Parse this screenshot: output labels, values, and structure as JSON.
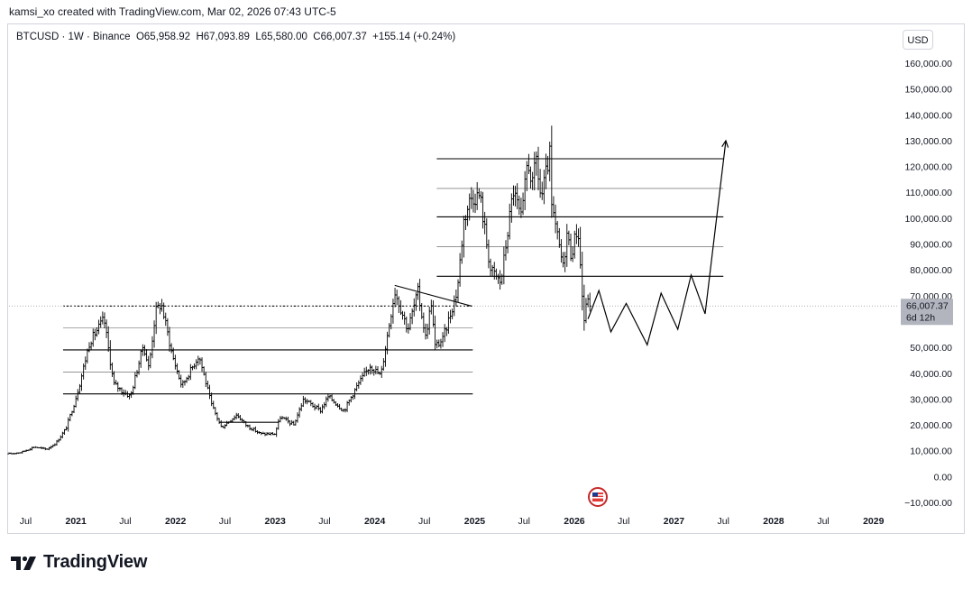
{
  "credit": "kamsi_xo created with TradingView.com, Mar 02, 2026 07:43 UTC-5",
  "legend": {
    "symbol": "BTCUSD",
    "sep": " · ",
    "interval": "1W",
    "exchange": "Binance",
    "open": "O65,958.92",
    "high": "H67,093.89",
    "low": "L65,580.00",
    "close": "C66,007.37",
    "change": "+155.14 (+0.24%)"
  },
  "currency": "USD",
  "price_label": {
    "value": "66,007.37",
    "countdown": "6d 12h"
  },
  "brand": "TradingView",
  "colors": {
    "text": "#131722",
    "grid_border": "#d1d4dc",
    "price_tag": "#b2b5be",
    "candle": "#000000"
  },
  "chart_data": {
    "type": "line",
    "symbol": "BTCUSD",
    "interval": "1W",
    "ylim": [
      -10000,
      160000
    ],
    "y_ticks": [
      160000,
      150000,
      140000,
      130000,
      120000,
      110000,
      100000,
      90000,
      80000,
      70000,
      60000,
      50000,
      40000,
      30000,
      20000,
      10000,
      0,
      -10000
    ],
    "y_tick_labels": [
      "160,000.00",
      "150,000.00",
      "140,000.00",
      "130,000.00",
      "120,000.00",
      "110,000.00",
      "100,000.00",
      "90,000.00",
      "80,000.00",
      "70,000.00",
      "",
      "50,000.00",
      "40,000.00",
      "30,000.00",
      "20,000.00",
      "10,000.00",
      "0.00",
      "−10,000.00"
    ],
    "x_range": [
      "2020-05-01",
      "2029-04-01"
    ],
    "x_ticks": [
      {
        "date": "2020-07-01",
        "label": "Jul",
        "bold": false
      },
      {
        "date": "2021-01-01",
        "label": "2021",
        "bold": true
      },
      {
        "date": "2021-07-01",
        "label": "Jul",
        "bold": false
      },
      {
        "date": "2022-01-01",
        "label": "2022",
        "bold": true
      },
      {
        "date": "2022-07-01",
        "label": "Jul",
        "bold": false
      },
      {
        "date": "2023-01-01",
        "label": "2023",
        "bold": true
      },
      {
        "date": "2023-07-01",
        "label": "Jul",
        "bold": false
      },
      {
        "date": "2024-01-01",
        "label": "2024",
        "bold": true
      },
      {
        "date": "2024-07-01",
        "label": "Jul",
        "bold": false
      },
      {
        "date": "2025-01-01",
        "label": "2025",
        "bold": true
      },
      {
        "date": "2025-07-01",
        "label": "Jul",
        "bold": false
      },
      {
        "date": "2026-01-01",
        "label": "2026",
        "bold": true
      },
      {
        "date": "2026-07-01",
        "label": "Jul",
        "bold": false
      },
      {
        "date": "2027-01-01",
        "label": "2027",
        "bold": true
      },
      {
        "date": "2027-07-01",
        "label": "Jul",
        "bold": false
      },
      {
        "date": "2028-01-01",
        "label": "2028",
        "bold": true
      },
      {
        "date": "2028-07-01",
        "label": "Jul",
        "bold": false
      },
      {
        "date": "2029-01-01",
        "label": "2029",
        "bold": true
      }
    ],
    "price_path": [
      [
        "2020-05-01",
        8800
      ],
      [
        "2020-06-15",
        9400
      ],
      [
        "2020-08-01",
        11500
      ],
      [
        "2020-09-15",
        10500
      ],
      [
        "2020-10-20",
        13000
      ],
      [
        "2020-11-25",
        18500
      ],
      [
        "2020-12-25",
        28000
      ],
      [
        "2021-01-15",
        36000
      ],
      [
        "2021-02-20",
        52000
      ],
      [
        "2021-04-14",
        61000
      ],
      [
        "2021-05-19",
        36000
      ],
      [
        "2021-06-20",
        33000
      ],
      [
        "2021-07-20",
        31000
      ],
      [
        "2021-09-05",
        51000
      ],
      [
        "2021-09-25",
        42000
      ],
      [
        "2021-10-20",
        64000
      ],
      [
        "2021-11-10",
        67000
      ],
      [
        "2021-12-20",
        47000
      ],
      [
        "2022-01-24",
        35000
      ],
      [
        "2022-03-28",
        47000
      ],
      [
        "2022-05-12",
        28000
      ],
      [
        "2022-06-18",
        19000
      ],
      [
        "2022-08-14",
        24000
      ],
      [
        "2022-09-15",
        20000
      ],
      [
        "2022-11-09",
        16500
      ],
      [
        "2022-12-30",
        16500
      ],
      [
        "2023-01-20",
        23000
      ],
      [
        "2023-03-10",
        20000
      ],
      [
        "2023-04-15",
        30000
      ],
      [
        "2023-06-15",
        25500
      ],
      [
        "2023-07-15",
        31000
      ],
      [
        "2023-09-10",
        25500
      ],
      [
        "2023-10-25",
        34500
      ],
      [
        "2023-12-15",
        43000
      ],
      [
        "2024-01-23",
        39000
      ],
      [
        "2024-03-14",
        72000
      ],
      [
        "2024-05-01",
        57000
      ],
      [
        "2024-06-07",
        71500
      ],
      [
        "2024-07-05",
        54000
      ],
      [
        "2024-07-29",
        69500
      ],
      [
        "2024-08-05",
        50000
      ],
      [
        "2024-09-06",
        53000
      ],
      [
        "2024-10-29",
        72000
      ],
      [
        "2024-11-22",
        99000
      ],
      [
        "2024-12-17",
        108000
      ],
      [
        "2025-01-20",
        109000
      ],
      [
        "2025-02-28",
        80000
      ],
      [
        "2025-04-07",
        75000
      ],
      [
        "2025-05-22",
        111000
      ],
      [
        "2025-06-22",
        99000
      ],
      [
        "2025-07-14",
        123000
      ],
      [
        "2025-08-02",
        112000
      ],
      [
        "2025-08-14",
        124000
      ],
      [
        "2025-09-01",
        107000
      ],
      [
        "2025-10-06",
        126000
      ],
      [
        "2025-10-10",
        104000
      ],
      [
        "2025-11-21",
        81000
      ],
      [
        "2025-12-05",
        94000
      ],
      [
        "2025-12-20",
        86000
      ],
      [
        "2026-01-14",
        97000
      ],
      [
        "2026-02-05",
        60000
      ],
      [
        "2026-02-20",
        70000
      ],
      [
        "2026-03-02",
        66007
      ]
    ],
    "current_price": 66007.37,
    "h_levels": [
      {
        "price": 66000,
        "from": "2020-11-15",
        "to": "2024-12-25",
        "style": "dashed"
      },
      {
        "price": 57500,
        "from": "2020-11-15",
        "to": "2024-12-25",
        "style": "thin"
      },
      {
        "price": 49000,
        "from": "2020-11-15",
        "to": "2024-12-25",
        "style": "solid"
      },
      {
        "price": 40500,
        "from": "2020-11-15",
        "to": "2024-12-25",
        "style": "thin"
      },
      {
        "price": 32000,
        "from": "2020-11-15",
        "to": "2024-12-25",
        "style": "solid"
      },
      {
        "price": 123000,
        "from": "2024-08-15",
        "to": "2027-07-01",
        "style": "solid"
      },
      {
        "price": 111500,
        "from": "2024-08-15",
        "to": "2027-07-01",
        "style": "thin"
      },
      {
        "price": 100500,
        "from": "2024-08-15",
        "to": "2027-07-01",
        "style": "solid"
      },
      {
        "price": 89000,
        "from": "2024-08-15",
        "to": "2027-07-01",
        "style": "thin"
      },
      {
        "price": 77500,
        "from": "2024-08-15",
        "to": "2027-07-01",
        "style": "solid"
      }
    ],
    "trendlines": [
      [
        [
          "2024-03-14",
          74000
        ],
        [
          "2024-12-20",
          66000
        ]
      ],
      [
        [
          "2022-06-10",
          21000
        ],
        [
          "2023-01-15",
          21000
        ]
      ]
    ],
    "projection": [
      [
        "2026-02-20",
        61000
      ],
      [
        "2026-04-01",
        72000
      ],
      [
        "2026-05-15",
        56000
      ],
      [
        "2026-07-10",
        67000
      ],
      [
        "2026-09-25",
        51000
      ],
      [
        "2026-11-15",
        71000
      ],
      [
        "2027-01-15",
        57000
      ],
      [
        "2027-03-05",
        78000
      ],
      [
        "2027-04-25",
        63000
      ],
      [
        "2027-07-10",
        130000
      ]
    ]
  }
}
